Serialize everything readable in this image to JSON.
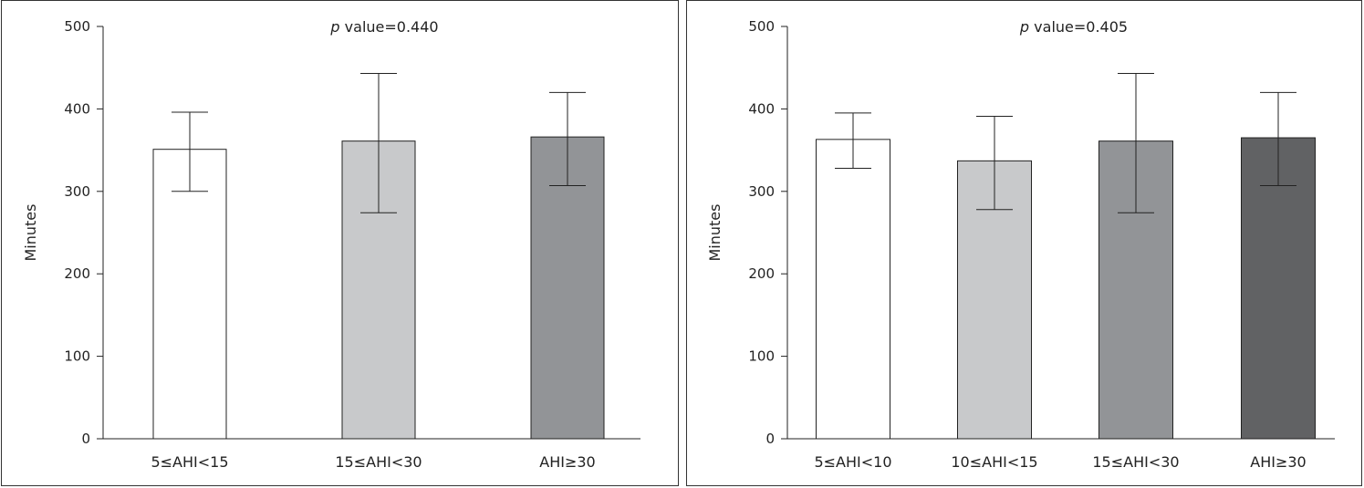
{
  "chart_data": [
    {
      "type": "bar",
      "annotation_prefix": "p",
      "annotation_text": " value=0.440",
      "ylabel": "Minutes",
      "ylim": [
        0,
        500
      ],
      "yticks": [
        "0",
        "100",
        "200",
        "300",
        "400",
        "500"
      ],
      "categories": [
        "5≤AHI<15",
        "15≤AHI<30",
        "AHI≥30"
      ],
      "values": [
        351,
        361,
        366
      ],
      "err_upper": [
        396,
        443,
        420
      ],
      "err_lower": [
        300,
        274,
        307
      ],
      "colors": [
        "#ffffff",
        "#c8c9cb",
        "#929497"
      ]
    },
    {
      "type": "bar",
      "annotation_prefix": "p",
      "annotation_text": " value=0.405",
      "ylabel": "Minutes",
      "ylim": [
        0,
        500
      ],
      "yticks": [
        "0",
        "100",
        "200",
        "300",
        "400",
        "500"
      ],
      "categories": [
        "5≤AHI<10",
        "10≤AHI<15",
        "15≤AHI<30",
        "AHI≥30"
      ],
      "values": [
        363,
        337,
        361,
        365
      ],
      "err_upper": [
        395,
        391,
        443,
        420
      ],
      "err_lower": [
        328,
        278,
        274,
        307
      ],
      "colors": [
        "#ffffff",
        "#c8c9cb",
        "#929497",
        "#616264"
      ]
    }
  ]
}
